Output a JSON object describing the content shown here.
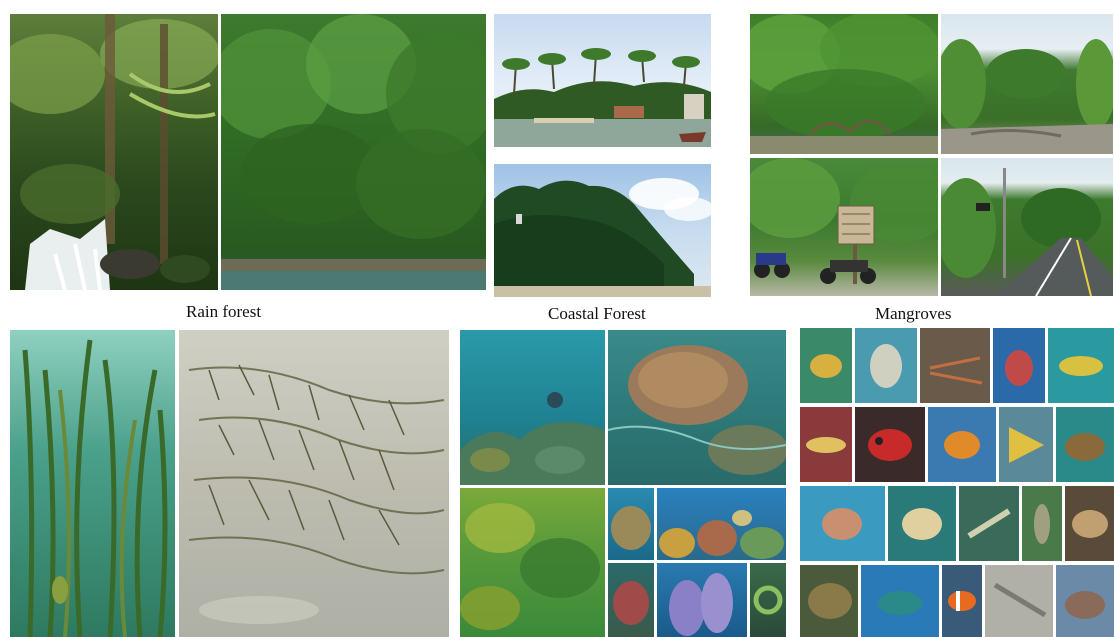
{
  "labels": {
    "rain_forest": "Rain forest",
    "coastal_forest": "Coastal Forest",
    "mangroves": "Mangroves"
  },
  "palette": {
    "forest_dark": "#1f4a1c",
    "forest_mid": "#3f7a2e",
    "forest_light": "#7fb04a",
    "sky": "#cfe0ee",
    "water_teal": "#2e8a8a",
    "sand": "#cbb994",
    "reef_blue": "#1e6fa8"
  }
}
